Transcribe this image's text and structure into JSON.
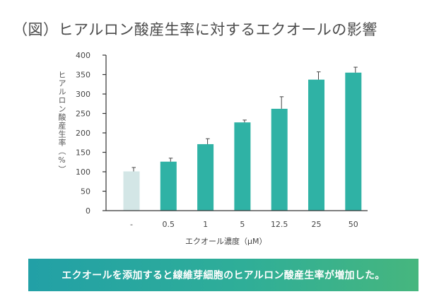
{
  "page": {
    "title": "（図）ヒアルロン酸産生率に対するエクオールの影響",
    "banner_text": "エクオールを添加すると線維芽細胞のヒアルロン酸産生率が増加した。"
  },
  "colors": {
    "bar": "#2fb2a5",
    "control_bar": "#d3e6e6",
    "axis": "#333333",
    "banner_start": "#22a0a6",
    "banner_end": "#46b67e"
  },
  "chart_data": {
    "type": "bar",
    "title": "（図）ヒアルロン酸産生率に対するエクオールの影響",
    "xlabel": "エクオール濃度（μM）",
    "ylabel": "ヒアルロン酸産生率（%）",
    "categories": [
      "-",
      "0.5",
      "1",
      "5",
      "12.5",
      "25",
      "50"
    ],
    "values": [
      101,
      126,
      171,
      227,
      262,
      337,
      355
    ],
    "errors": [
      10,
      9,
      14,
      6,
      31,
      20,
      14
    ],
    "ylim": [
      0,
      400
    ],
    "yticks": [
      0,
      50,
      100,
      150,
      200,
      250,
      300,
      350,
      400
    ],
    "grid": false,
    "legend": "none"
  }
}
